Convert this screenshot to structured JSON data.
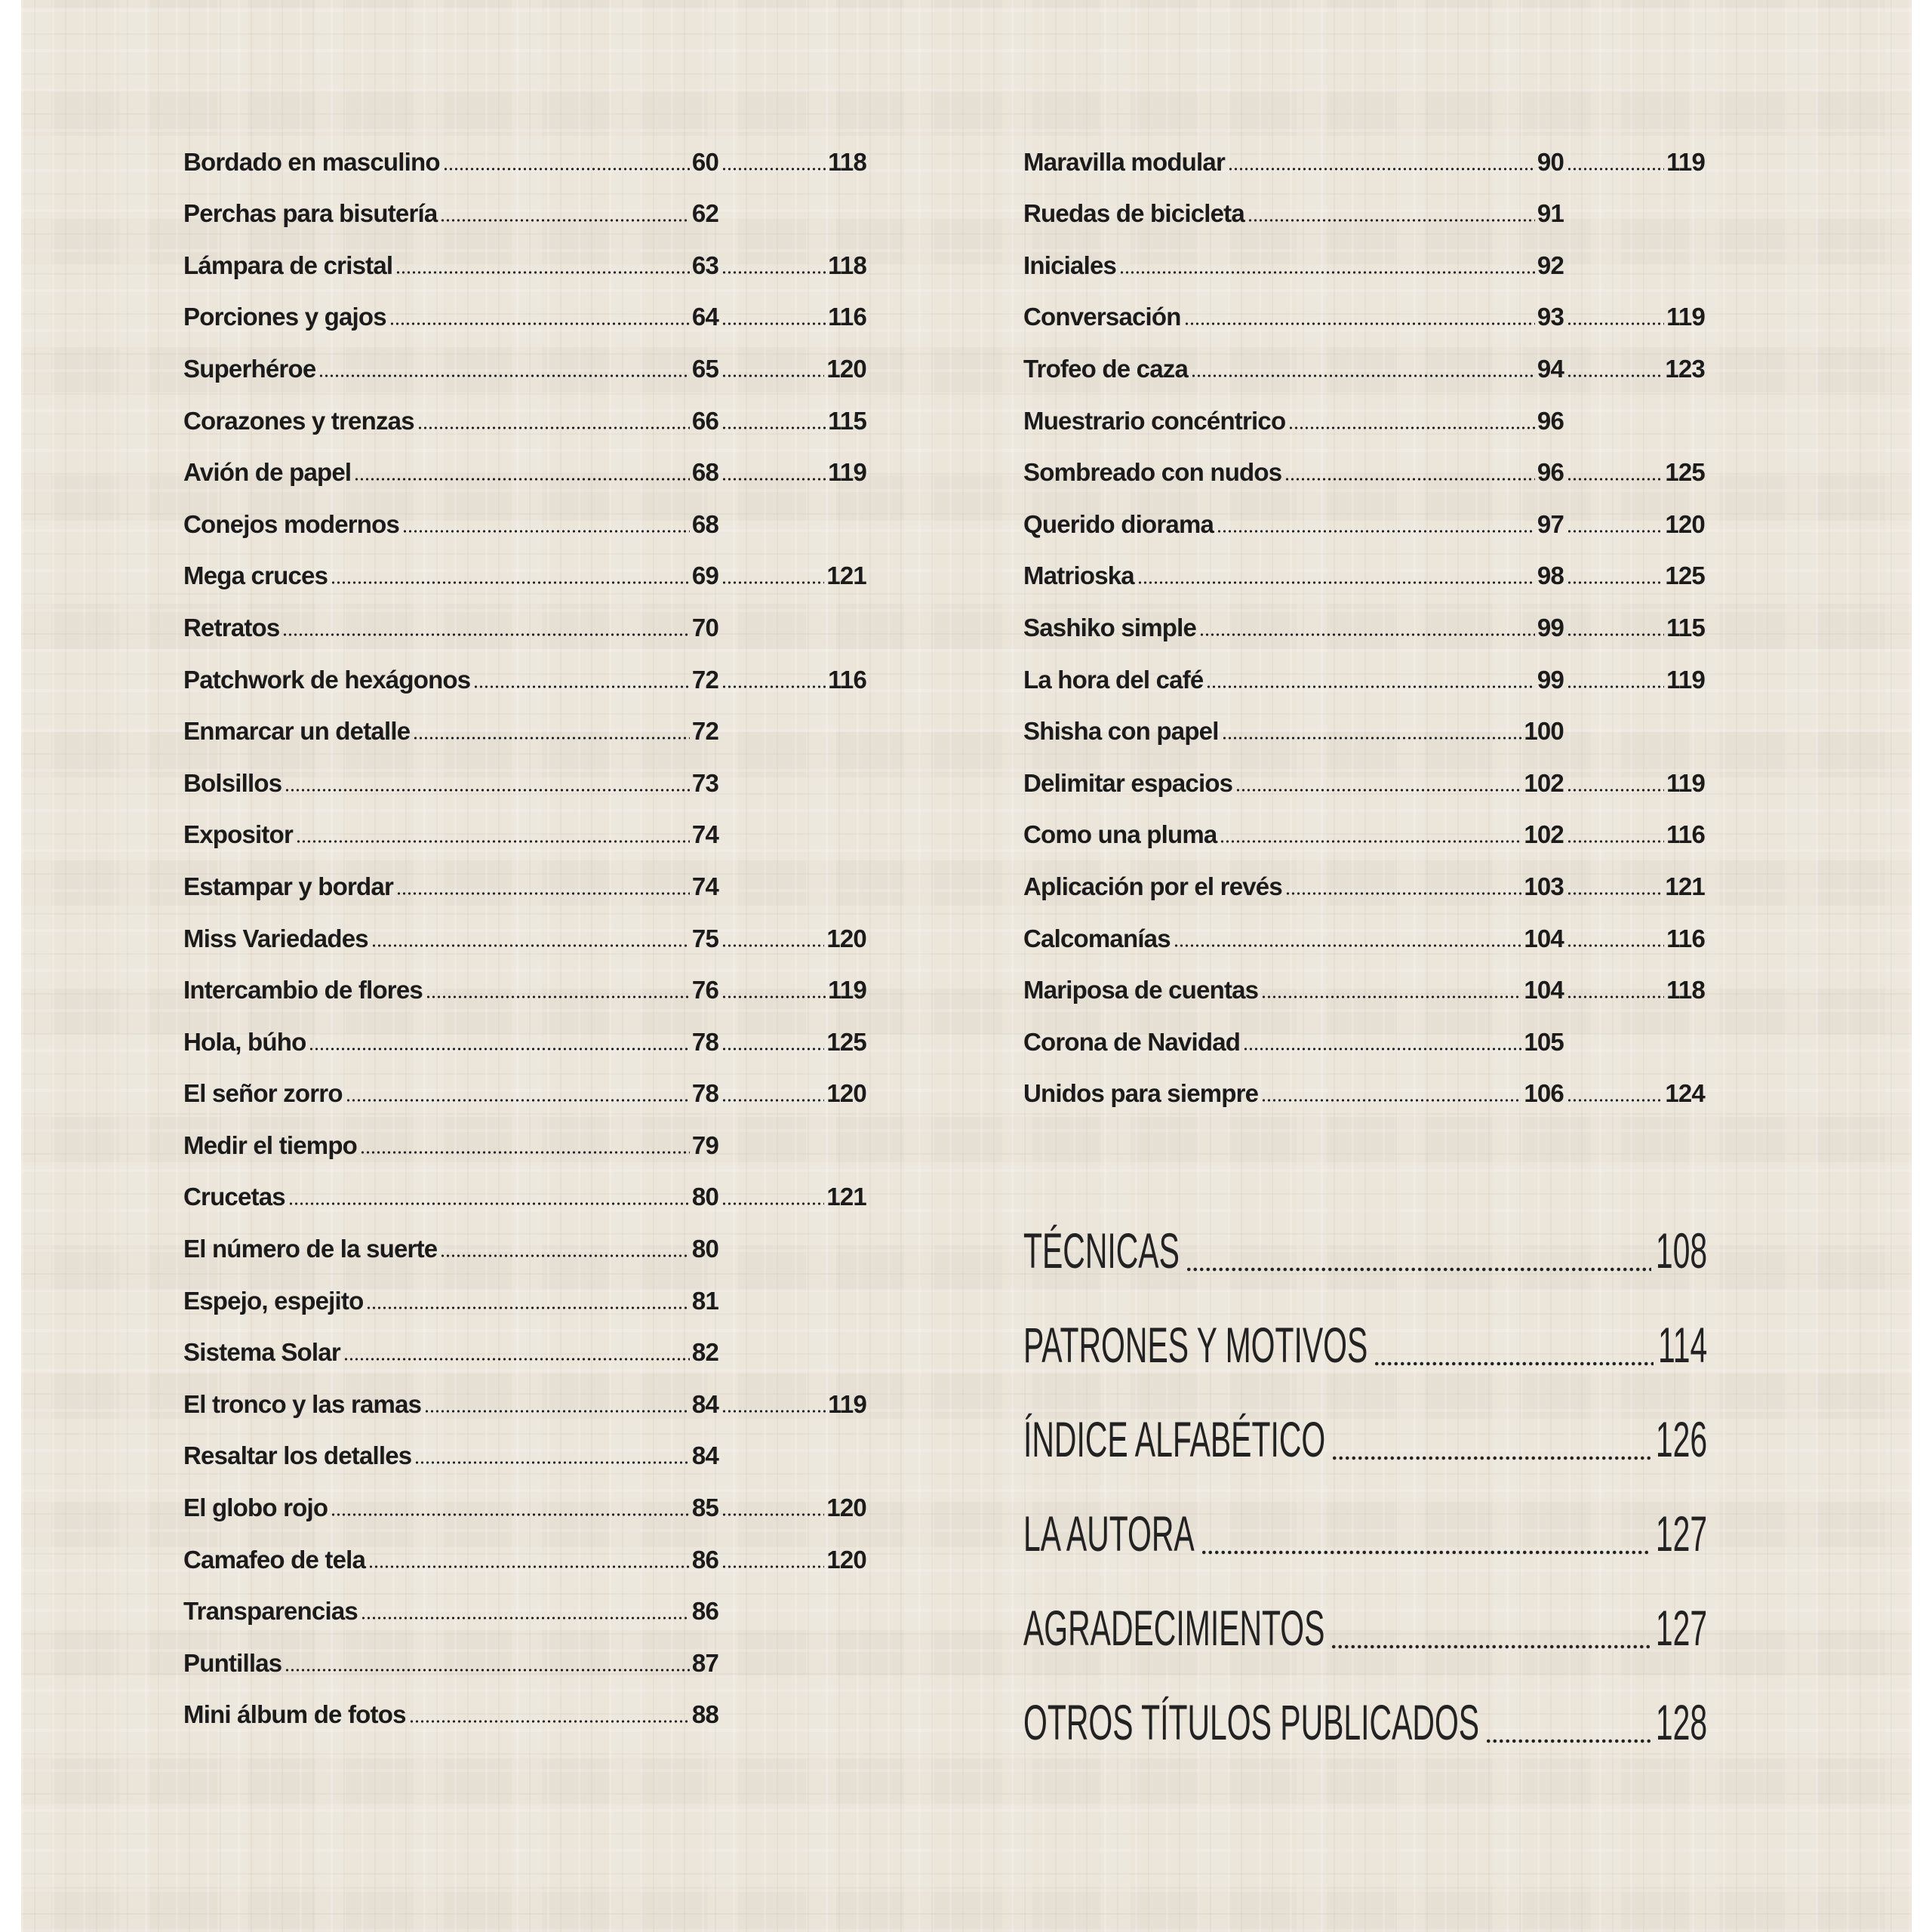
{
  "left_entries": [
    {
      "title": "Bordado en masculino",
      "page": "60",
      "pattern_page": "118"
    },
    {
      "title": "Perchas para bisutería",
      "page": "62",
      "pattern_page": null
    },
    {
      "title": "Lámpara de cristal",
      "page": "63",
      "pattern_page": "118"
    },
    {
      "title": "Porciones y gajos",
      "page": "64",
      "pattern_page": "116"
    },
    {
      "title": "Superhéroe",
      "page": "65",
      "pattern_page": "120"
    },
    {
      "title": "Corazones y trenzas",
      "page": "66",
      "pattern_page": "115"
    },
    {
      "title": "Avión de papel",
      "page": "68",
      "pattern_page": "119"
    },
    {
      "title": "Conejos modernos",
      "page": "68",
      "pattern_page": null
    },
    {
      "title": "Mega cruces",
      "page": "69",
      "pattern_page": "121"
    },
    {
      "title": "Retratos",
      "page": "70",
      "pattern_page": null
    },
    {
      "title": "Patchwork de hexágonos",
      "page": "72",
      "pattern_page": "116"
    },
    {
      "title": "Enmarcar un detalle",
      "page": "72",
      "pattern_page": null
    },
    {
      "title": "Bolsillos",
      "page": "73",
      "pattern_page": null
    },
    {
      "title": "Expositor",
      "page": "74",
      "pattern_page": null
    },
    {
      "title": "Estampar y bordar",
      "page": "74",
      "pattern_page": null
    },
    {
      "title": "Miss Variedades",
      "page": "75",
      "pattern_page": "120"
    },
    {
      "title": "Intercambio de flores",
      "page": "76",
      "pattern_page": "119"
    },
    {
      "title": "Hola, búho",
      "page": "78",
      "pattern_page": "125"
    },
    {
      "title": "El señor zorro",
      "page": "78",
      "pattern_page": "120"
    },
    {
      "title": "Medir el tiempo",
      "page": "79",
      "pattern_page": null
    },
    {
      "title": "Crucetas",
      "page": "80",
      "pattern_page": "121"
    },
    {
      "title": "El número de la suerte",
      "page": "80",
      "pattern_page": null
    },
    {
      "title": "Espejo, espejito",
      "page": "81",
      "pattern_page": null
    },
    {
      "title": "Sistema Solar",
      "page": "82",
      "pattern_page": null
    },
    {
      "title": "El tronco y las ramas",
      "page": "84",
      "pattern_page": "119"
    },
    {
      "title": "Resaltar los detalles",
      "page": "84",
      "pattern_page": null
    },
    {
      "title": "El globo rojo",
      "page": "85",
      "pattern_page": "120"
    },
    {
      "title": "Camafeo de tela",
      "page": "86",
      "pattern_page": "120"
    },
    {
      "title": "Transparencias",
      "page": "86",
      "pattern_page": null
    },
    {
      "title": "Puntillas",
      "page": "87",
      "pattern_page": null
    },
    {
      "title": "Mini álbum de fotos",
      "page": "88",
      "pattern_page": null
    }
  ],
  "right_entries": [
    {
      "title": "Maravilla modular",
      "page": "90",
      "pattern_page": "119"
    },
    {
      "title": "Ruedas de bicicleta",
      "page": "91",
      "pattern_page": null
    },
    {
      "title": "Iniciales",
      "page": "92",
      "pattern_page": null
    },
    {
      "title": "Conversación",
      "page": "93",
      "pattern_page": "119"
    },
    {
      "title": "Trofeo de caza",
      "page": "94",
      "pattern_page": "123"
    },
    {
      "title": "Muestrario concéntrico",
      "page": "96",
      "pattern_page": null
    },
    {
      "title": "Sombreado con nudos",
      "page": "96",
      "pattern_page": "125"
    },
    {
      "title": "Querido diorama",
      "page": "97",
      "pattern_page": "120"
    },
    {
      "title": "Matrioska",
      "page": "98",
      "pattern_page": "125"
    },
    {
      "title": "Sashiko simple",
      "page": "99",
      "pattern_page": "115"
    },
    {
      "title": "La hora del café",
      "page": "99",
      "pattern_page": "119"
    },
    {
      "title": "Shisha con papel",
      "page": "100",
      "pattern_page": null
    },
    {
      "title": "Delimitar espacios",
      "page": "102",
      "pattern_page": "119"
    },
    {
      "title": "Como una pluma",
      "page": "102",
      "pattern_page": "116"
    },
    {
      "title": "Aplicación por el revés",
      "page": "103",
      "pattern_page": "121"
    },
    {
      "title": "Calcomanías",
      "page": "104",
      "pattern_page": "116"
    },
    {
      "title": "Mariposa de cuentas",
      "page": "104",
      "pattern_page": "118"
    },
    {
      "title": "Corona de Navidad",
      "page": "105",
      "pattern_page": null
    },
    {
      "title": "Unidos para siempre",
      "page": "106",
      "pattern_page": "124"
    }
  ],
  "sections": [
    {
      "title": "TÉCNICAS",
      "page": "108"
    },
    {
      "title": "PATRONES Y MOTIVOS",
      "page": "114"
    },
    {
      "title": "ÍNDICE ALFABÉTICO",
      "page": "126"
    },
    {
      "title": "LA AUTORA",
      "page": "127"
    },
    {
      "title": "AGRADECIMIENTOS",
      "page": "127"
    },
    {
      "title": "OTROS TÍTULOS PUBLICADOS",
      "page": "128"
    }
  ],
  "colors": {
    "background": "#ebe5da",
    "text": "#1b1b1b"
  }
}
